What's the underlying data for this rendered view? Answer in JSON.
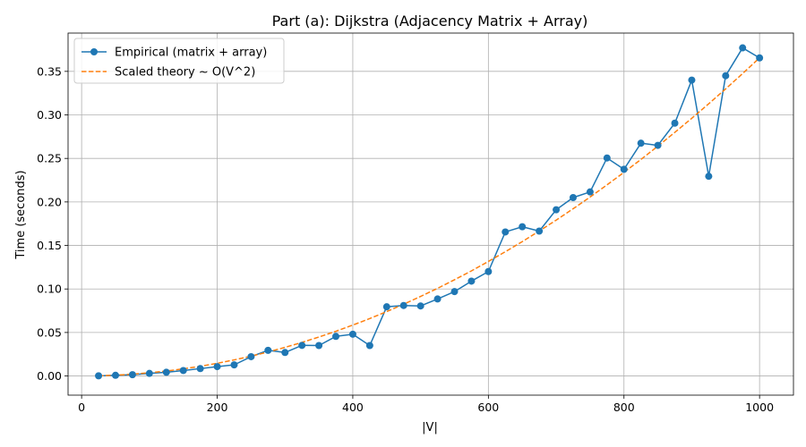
{
  "chart_data": {
    "type": "line",
    "title": "Part (a): Dijkstra (Adjacency Matrix + Array)",
    "xlabel": "|V|",
    "ylabel": "Time (seconds)",
    "xlim": [
      -20,
      1050
    ],
    "ylim": [
      -0.022,
      0.394
    ],
    "xticks": [
      0,
      200,
      400,
      600,
      800,
      1000
    ],
    "yticks": [
      0.0,
      0.05,
      0.1,
      0.15,
      0.2,
      0.25,
      0.3,
      0.35
    ],
    "ytick_labels": [
      "0.00",
      "0.05",
      "0.10",
      "0.15",
      "0.20",
      "0.25",
      "0.30",
      "0.35"
    ],
    "grid": true,
    "legend_position": "top-left",
    "x": [
      25,
      50,
      75,
      100,
      125,
      150,
      175,
      200,
      225,
      250,
      275,
      300,
      325,
      350,
      375,
      400,
      425,
      450,
      475,
      500,
      525,
      550,
      575,
      600,
      625,
      650,
      675,
      700,
      725,
      750,
      775,
      800,
      825,
      850,
      875,
      900,
      925,
      950,
      975,
      1000
    ],
    "series": [
      {
        "name": "Empirical (matrix + array)",
        "color": "#1f77b4",
        "style": "solid-markers",
        "values": [
          0.0002,
          0.0008,
          0.0015,
          0.003,
          0.0043,
          0.0063,
          0.0085,
          0.0108,
          0.0128,
          0.0222,
          0.0295,
          0.027,
          0.0352,
          0.035,
          0.0455,
          0.048,
          0.035,
          0.0795,
          0.081,
          0.0805,
          0.0885,
          0.097,
          0.109,
          0.12,
          0.1655,
          0.1715,
          0.1665,
          0.191,
          0.205,
          0.2115,
          0.2505,
          0.2375,
          0.2675,
          0.265,
          0.2905,
          0.34,
          0.2295,
          0.345,
          0.377,
          0.3655
        ]
      },
      {
        "name": "Scaled theory ~ O(V^2)",
        "color": "#ff7f0e",
        "style": "dashed",
        "values": [
          0.0002,
          0.0009,
          0.0021,
          0.0037,
          0.0057,
          0.0082,
          0.0112,
          0.0146,
          0.0185,
          0.0228,
          0.0276,
          0.0329,
          0.0386,
          0.0448,
          0.0514,
          0.0585,
          0.066,
          0.074,
          0.0825,
          0.0914,
          0.1007,
          0.1106,
          0.1208,
          0.1316,
          0.1428,
          0.1544,
          0.1666,
          0.1791,
          0.1922,
          0.2056,
          0.2196,
          0.234,
          0.2488,
          0.2641,
          0.2799,
          0.2961,
          0.3128,
          0.3299,
          0.3475,
          0.3655
        ]
      }
    ]
  }
}
